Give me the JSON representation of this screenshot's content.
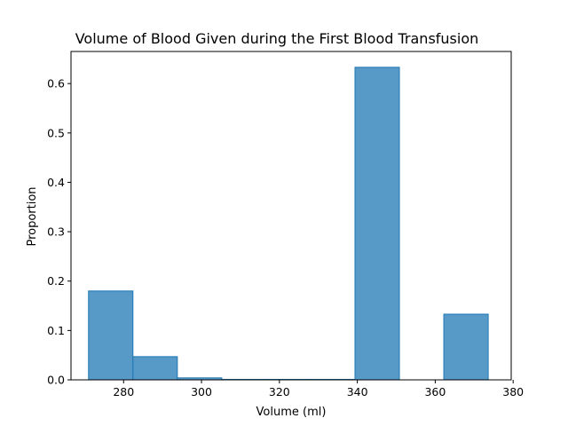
{
  "chart_data": {
    "type": "bar",
    "title": "Volume of Blood Given during the First Blood Transfusion",
    "xlabel": "Volume (ml)",
    "ylabel": "Proportion",
    "xlim": [
      266.5,
      379.5
    ],
    "ylim": [
      0,
      0.665
    ],
    "xticks": [
      280,
      300,
      320,
      340,
      360,
      380
    ],
    "yticks": [
      0.0,
      0.1,
      0.2,
      0.3,
      0.4,
      0.5,
      0.6
    ],
    "ytick_labels": [
      "0.0",
      "0.1",
      "0.2",
      "0.3",
      "0.4",
      "0.5",
      "0.6"
    ],
    "grid": false,
    "bins": [
      {
        "x0": 271.0,
        "x1": 282.4,
        "value": 0.18
      },
      {
        "x0": 282.4,
        "x1": 293.8,
        "value": 0.047
      },
      {
        "x0": 293.8,
        "x1": 305.2,
        "value": 0.004
      },
      {
        "x0": 305.2,
        "x1": 316.6,
        "value": 0.001
      },
      {
        "x0": 316.6,
        "x1": 328.0,
        "value": 0.001
      },
      {
        "x0": 328.0,
        "x1": 339.4,
        "value": 0.001
      },
      {
        "x0": 339.4,
        "x1": 350.8,
        "value": 0.633
      },
      {
        "x0": 350.8,
        "x1": 362.2,
        "value": 0.0
      },
      {
        "x0": 362.2,
        "x1": 373.6,
        "value": 0.133
      }
    ],
    "colors": {
      "bar_fill": "#5799c7",
      "bar_edge": "#1f77b4",
      "axis": "#000000"
    }
  }
}
